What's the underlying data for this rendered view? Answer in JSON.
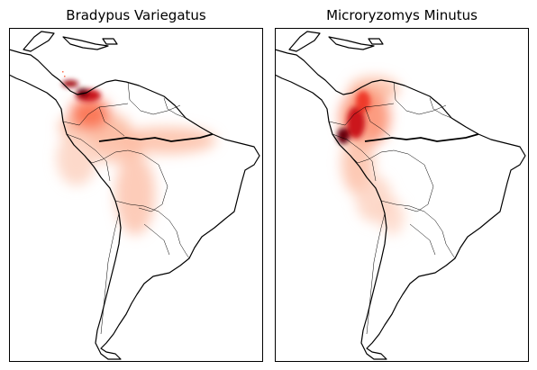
{
  "figure": {
    "panels": [
      {
        "title": "Bradypus Variegatus"
      },
      {
        "title": "Microryzomys Minutus"
      }
    ],
    "colormap": "Reds",
    "border_color": "#000000"
  }
}
